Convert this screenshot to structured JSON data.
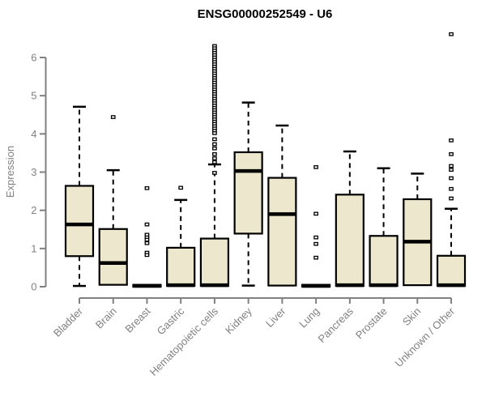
{
  "colors": {
    "background": "#ffffff",
    "box_fill": "#ede8cd",
    "box_border": "#000000",
    "median": "#000000",
    "whisker": "#000000",
    "outlier_fill": "#ffffff",
    "axis": "#808080",
    "label": "#808080",
    "title": "#000000"
  },
  "chart_data": {
    "type": "box",
    "title": "ENSG00000252549 - U6",
    "xlabel": "",
    "ylabel": "Expression",
    "ylim": [
      0,
      6.7
    ],
    "yticks": [
      0,
      1,
      2,
      3,
      4,
      5,
      6
    ],
    "grid": false,
    "legend": false,
    "categories": [
      "Bladder",
      "Brain",
      "Breast",
      "Gastric",
      "Hematopoietic cells",
      "Kidney",
      "Liver",
      "Lung",
      "Pancreas",
      "Prostate",
      "Skin",
      "Unknown / Other"
    ],
    "boxes": [
      {
        "category": "Bladder",
        "low": 0.02,
        "q1": 0.8,
        "median": 1.63,
        "q3": 2.64,
        "high": 4.71,
        "outliers": []
      },
      {
        "category": "Brain",
        "low": 0.05,
        "q1": 0.05,
        "median": 0.62,
        "q3": 1.51,
        "high": 3.05,
        "outliers": [
          4.44
        ]
      },
      {
        "category": "Breast",
        "low": 0.0,
        "q1": 0.0,
        "median": 0.02,
        "q3": 0.05,
        "high": 0.05,
        "outliers": [
          2.58,
          1.63,
          1.36,
          1.29,
          1.23,
          1.14,
          0.89,
          0.83
        ]
      },
      {
        "category": "Gastric",
        "low": 0.02,
        "q1": 0.02,
        "median": 0.04,
        "q3": 1.02,
        "high": 2.27,
        "outliers": [
          2.59
        ]
      },
      {
        "category": "Hematopoietic cells",
        "low": 0.02,
        "q1": 0.02,
        "median": 0.04,
        "q3": 1.26,
        "high": 3.2,
        "outliers": [
          6.3,
          6.24,
          6.18,
          6.12,
          6.06,
          6.0,
          5.94,
          5.88,
          5.82,
          5.76,
          5.7,
          5.64,
          5.58,
          5.52,
          5.46,
          5.4,
          5.34,
          5.28,
          5.22,
          5.16,
          5.1,
          5.04,
          4.98,
          4.92,
          4.86,
          4.8,
          4.74,
          4.68,
          4.62,
          4.56,
          4.5,
          4.44,
          4.38,
          4.32,
          4.26,
          4.2,
          4.14,
          4.08,
          4.02,
          3.86,
          3.73,
          3.62,
          3.47,
          3.36,
          3.26,
          2.98
        ]
      },
      {
        "category": "Kidney",
        "low": 0.03,
        "q1": 1.39,
        "median": 3.03,
        "q3": 3.52,
        "high": 4.82,
        "outliers": []
      },
      {
        "category": "Liver",
        "low": 0.03,
        "q1": 0.03,
        "median": 1.9,
        "q3": 2.85,
        "high": 4.22,
        "outliers": []
      },
      {
        "category": "Lung",
        "low": 0.0,
        "q1": 0.0,
        "median": 0.02,
        "q3": 0.05,
        "high": 0.05,
        "outliers": [
          3.13,
          1.91,
          1.29,
          1.12,
          0.76
        ]
      },
      {
        "category": "Pancreas",
        "low": 0.02,
        "q1": 0.02,
        "median": 0.04,
        "q3": 2.41,
        "high": 3.54,
        "outliers": []
      },
      {
        "category": "Prostate",
        "low": 0.02,
        "q1": 0.02,
        "median": 0.04,
        "q3": 1.33,
        "high": 3.1,
        "outliers": []
      },
      {
        "category": "Skin",
        "low": 0.04,
        "q1": 0.04,
        "median": 1.18,
        "q3": 2.29,
        "high": 2.96,
        "outliers": []
      },
      {
        "category": "Unknown / Other",
        "low": 0.02,
        "q1": 0.02,
        "median": 0.04,
        "q3": 0.81,
        "high": 2.04,
        "outliers": [
          6.61,
          3.83,
          3.47,
          3.16,
          3.06,
          2.84,
          2.56,
          2.31
        ]
      }
    ]
  }
}
